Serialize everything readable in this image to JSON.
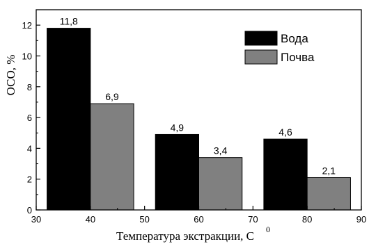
{
  "chart_data": {
    "type": "bar",
    "title": "",
    "xlabel": "Температура экстракции, C",
    "xlabel_superscript": "0",
    "ylabel": "ОСО, %",
    "xlim": [
      30,
      90
    ],
    "ylim": [
      0,
      13
    ],
    "x_ticks": [
      30,
      40,
      50,
      60,
      70,
      80,
      90
    ],
    "y_ticks": [
      0,
      2,
      4,
      6,
      8,
      10,
      12
    ],
    "bar_width": 8,
    "grid": false,
    "legend_position": "top-right",
    "series": [
      {
        "name": "Вода",
        "color": "#000000",
        "x": [
          36,
          56,
          76
        ],
        "values": [
          11.8,
          4.9,
          4.6
        ],
        "labels": [
          "11,8",
          "4,9",
          "4,6"
        ]
      },
      {
        "name": "Почва",
        "color": "#808080",
        "x": [
          44,
          64,
          84
        ],
        "values": [
          6.9,
          3.4,
          2.1
        ],
        "labels": [
          "6,9",
          "3,4",
          "2,1"
        ]
      }
    ]
  }
}
